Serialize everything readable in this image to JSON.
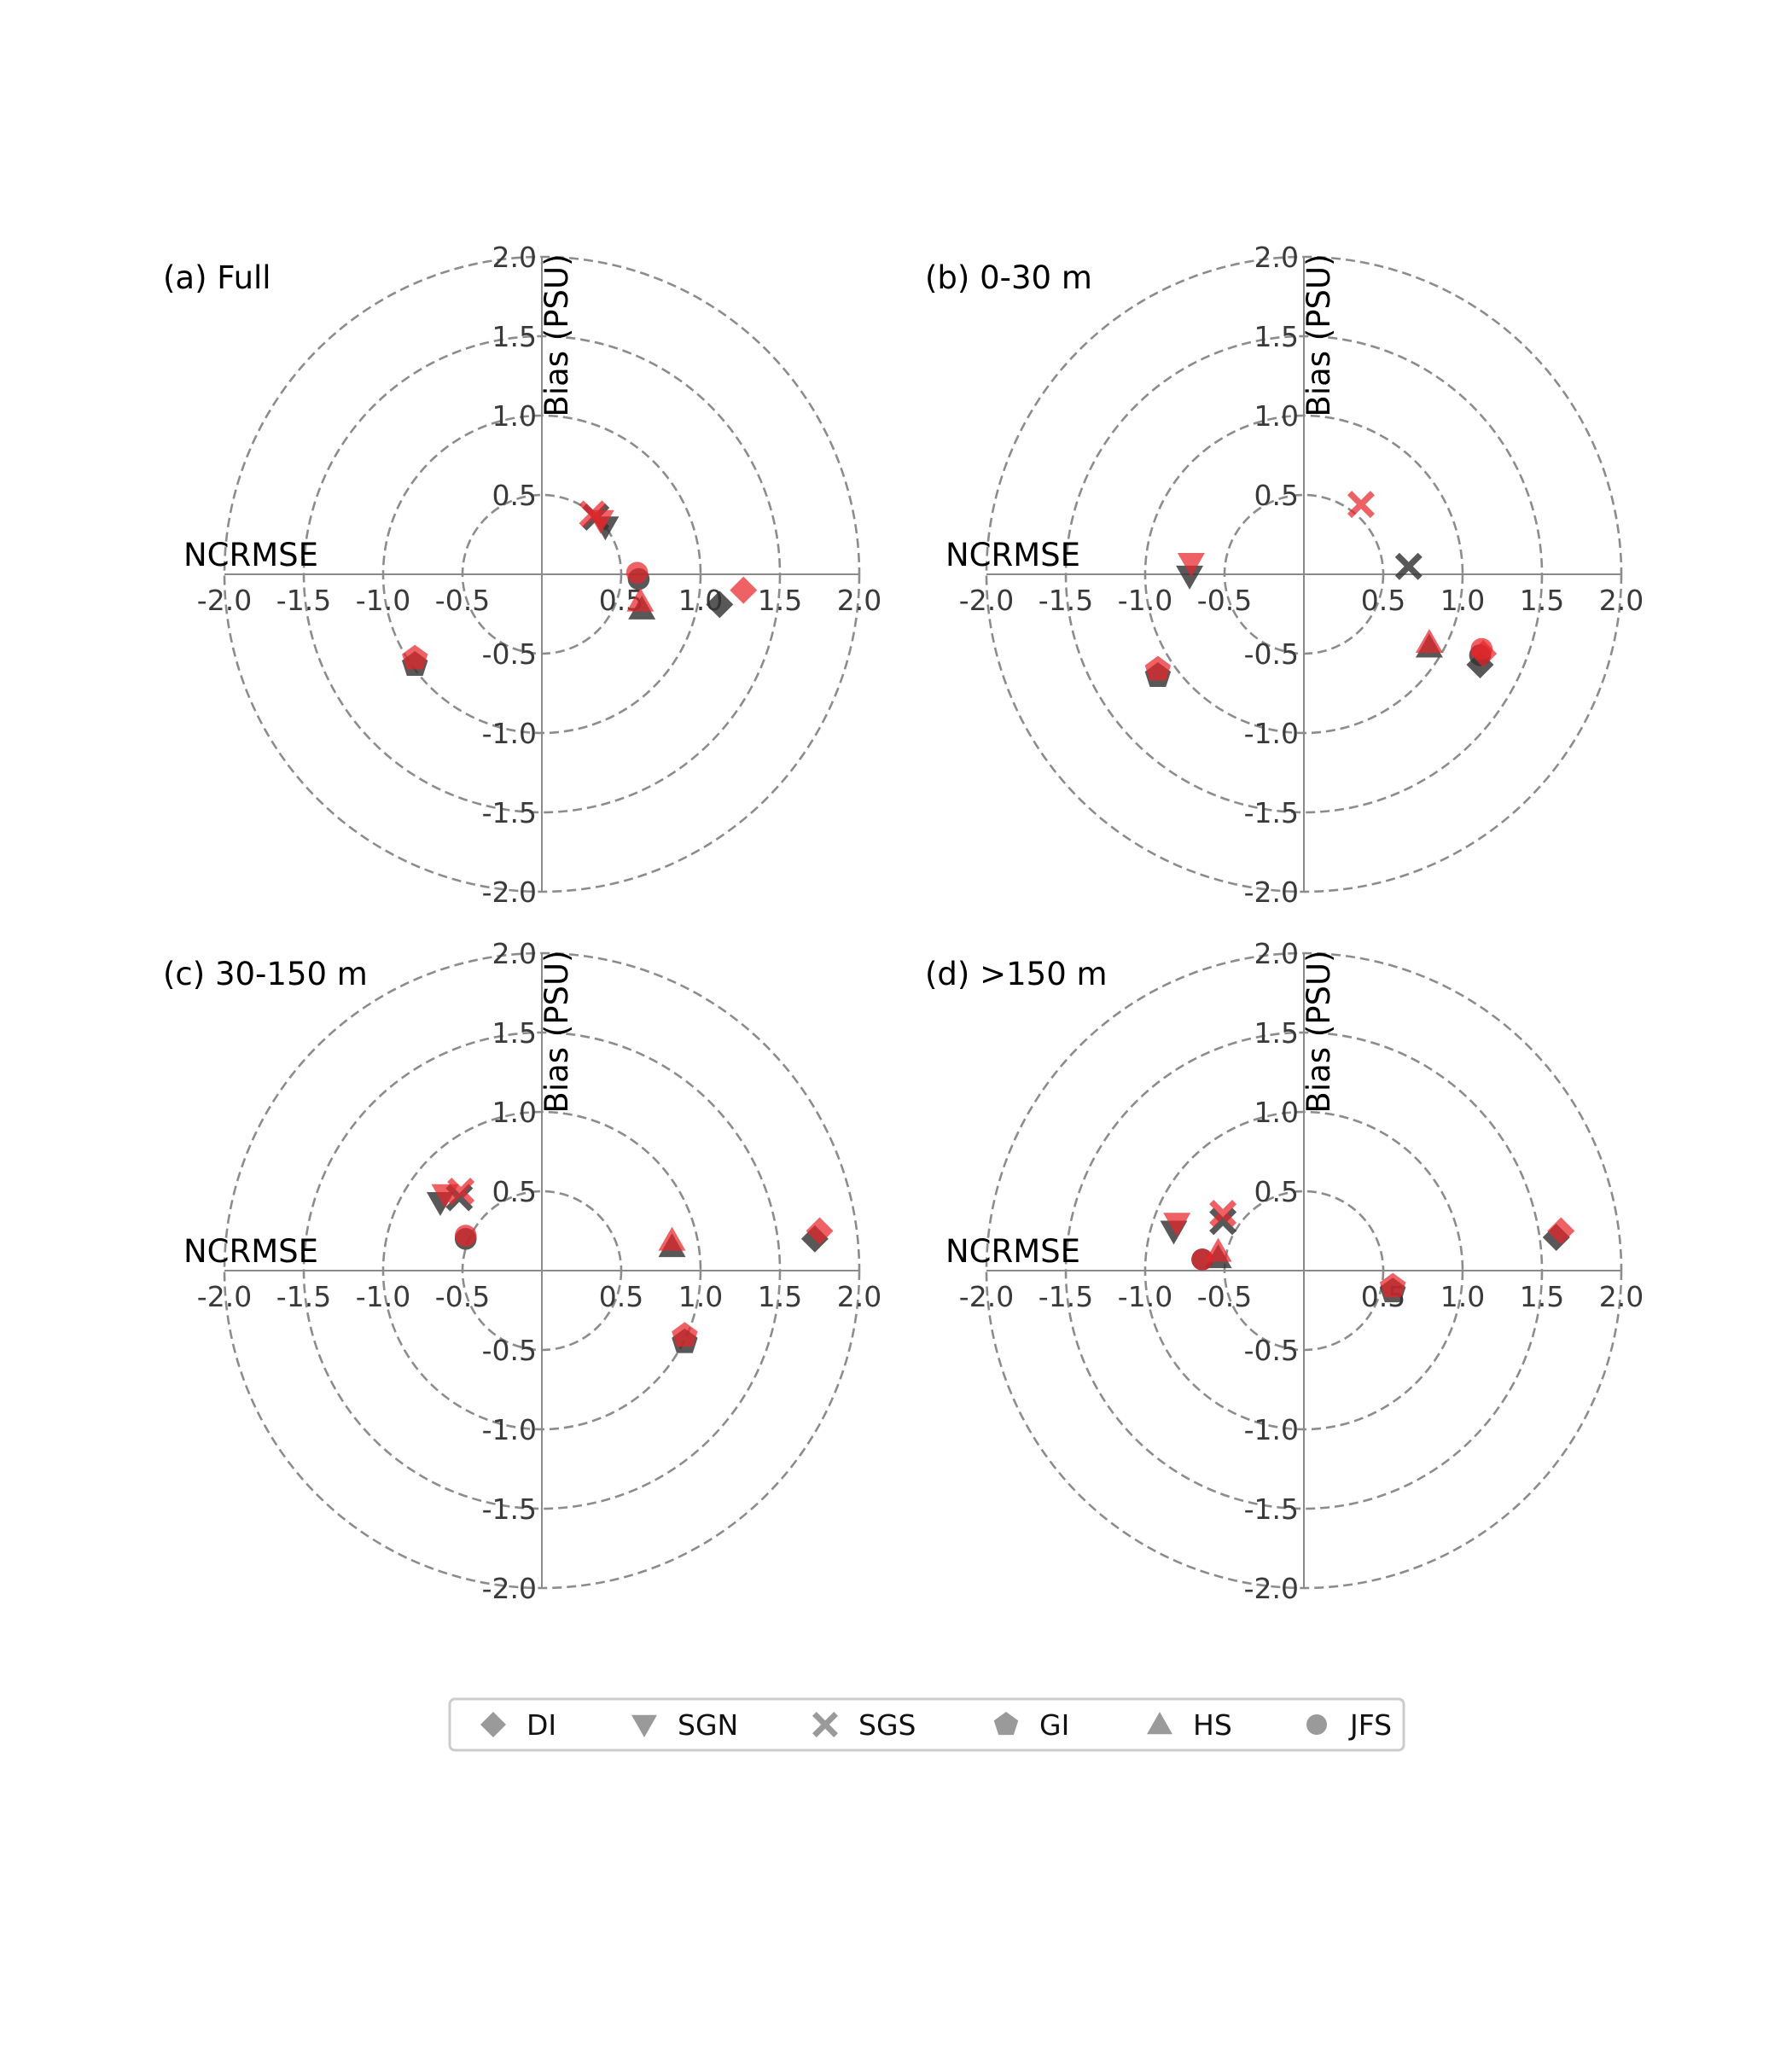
{
  "chart_data": {
    "type": "scatter",
    "description_none": "",
    "marker_colors": {
      "black": "#333333",
      "red": "#e8262b",
      "legend_gray": "#9a9a9a",
      "grid": "#8c8c8c"
    },
    "shared_legend": [
      {
        "name": "DI",
        "marker": "diamond"
      },
      {
        "name": "SGN",
        "marker": "triangle-down"
      },
      {
        "name": "SGS",
        "marker": "x"
      },
      {
        "name": "GI",
        "marker": "pentagon"
      },
      {
        "name": "HS",
        "marker": "triangle-up"
      },
      {
        "name": "JFS",
        "marker": "circle"
      }
    ],
    "legend_placement": "bottom-center",
    "panels": [
      {
        "title": "(a) Full",
        "xlabel": "NCRMSE",
        "ylabel": "Bias (PSU)",
        "xlim": [
          -2.0,
          2.0
        ],
        "ylim": [
          -2.0,
          2.0
        ],
        "xticks": [
          "-2.0",
          "-1.5",
          "-1.0",
          "-0.5",
          "0.5",
          "1.0",
          "1.5",
          "2.0"
        ],
        "yticks": [
          "2.0",
          "1.5",
          "1.0",
          "0.5",
          "-0.5",
          "-1.0",
          "-1.5",
          "-2.0"
        ],
        "rings": [
          0.5,
          1.0,
          1.5,
          2.0
        ],
        "grid": true,
        "points": [
          {
            "series": "DI",
            "group": "black",
            "x": 1.12,
            "y": -0.19
          },
          {
            "series": "DI",
            "group": "red",
            "x": 1.27,
            "y": -0.1
          },
          {
            "series": "SGN",
            "group": "black",
            "x": 0.4,
            "y": 0.3
          },
          {
            "series": "SGN",
            "group": "red",
            "x": 0.37,
            "y": 0.34
          },
          {
            "series": "SGS",
            "group": "black",
            "x": 0.34,
            "y": 0.36
          },
          {
            "series": "SGS",
            "group": "red",
            "x": 0.32,
            "y": 0.38
          },
          {
            "series": "GI",
            "group": "black",
            "x": -0.8,
            "y": -0.57
          },
          {
            "series": "GI",
            "group": "red",
            "x": -0.8,
            "y": -0.53
          },
          {
            "series": "HS",
            "group": "black",
            "x": 0.63,
            "y": -0.22
          },
          {
            "series": "HS",
            "group": "red",
            "x": 0.62,
            "y": -0.17
          },
          {
            "series": "JFS",
            "group": "black",
            "x": 0.61,
            "y": -0.03
          },
          {
            "series": "JFS",
            "group": "red",
            "x": 0.6,
            "y": 0.01
          }
        ]
      },
      {
        "title": "(b) 0-30 m",
        "xlabel": "NCRMSE",
        "ylabel": "Bias (PSU)",
        "xlim": [
          -2.0,
          2.0
        ],
        "ylim": [
          -2.0,
          2.0
        ],
        "xticks": [
          "-2.0",
          "-1.5",
          "-1.0",
          "-0.5",
          "0.5",
          "1.0",
          "1.5",
          "2.0"
        ],
        "yticks": [
          "2.0",
          "1.5",
          "1.0",
          "0.5",
          "-0.5",
          "-1.0",
          "-1.5",
          "-2.0"
        ],
        "rings": [
          0.5,
          1.0,
          1.5,
          2.0
        ],
        "grid": true,
        "points": [
          {
            "series": "DI",
            "group": "black",
            "x": 1.11,
            "y": -0.57
          },
          {
            "series": "DI",
            "group": "red",
            "x": 1.13,
            "y": -0.5
          },
          {
            "series": "SGN",
            "group": "black",
            "x": -0.72,
            "y": -0.01
          },
          {
            "series": "SGN",
            "group": "red",
            "x": -0.71,
            "y": 0.07
          },
          {
            "series": "SGS",
            "group": "black",
            "x": 0.66,
            "y": 0.05
          },
          {
            "series": "SGS",
            "group": "red",
            "x": 0.36,
            "y": 0.44
          },
          {
            "series": "GI",
            "group": "black",
            "x": -0.92,
            "y": -0.64
          },
          {
            "series": "GI",
            "group": "red",
            "x": -0.92,
            "y": -0.6
          },
          {
            "series": "HS",
            "group": "black",
            "x": 0.79,
            "y": -0.46
          },
          {
            "series": "HS",
            "group": "red",
            "x": 0.79,
            "y": -0.43
          },
          {
            "series": "JFS",
            "group": "black",
            "x": 1.11,
            "y": -0.51
          },
          {
            "series": "JFS",
            "group": "red",
            "x": 1.12,
            "y": -0.47
          }
        ]
      },
      {
        "title": "(c) 30-150 m",
        "xlabel": "NCRMSE",
        "ylabel": "Bias (PSU)",
        "xlim": [
          -2.0,
          2.0
        ],
        "ylim": [
          -2.0,
          2.0
        ],
        "xticks": [
          "-2.0",
          "-1.5",
          "-1.0",
          "-0.5",
          "0.5",
          "1.0",
          "1.5",
          "2.0"
        ],
        "yticks": [
          "2.0",
          "1.5",
          "1.0",
          "0.5",
          "-0.5",
          "-1.0",
          "-1.5",
          "-2.0"
        ],
        "rings": [
          0.5,
          1.0,
          1.5,
          2.0
        ],
        "grid": true,
        "points": [
          {
            "series": "DI",
            "group": "black",
            "x": 1.72,
            "y": 0.2
          },
          {
            "series": "DI",
            "group": "red",
            "x": 1.75,
            "y": 0.25
          },
          {
            "series": "SGN",
            "group": "black",
            "x": -0.64,
            "y": 0.43
          },
          {
            "series": "SGN",
            "group": "red",
            "x": -0.61,
            "y": 0.48
          },
          {
            "series": "SGS",
            "group": "black",
            "x": -0.52,
            "y": 0.46
          },
          {
            "series": "SGS",
            "group": "red",
            "x": -0.51,
            "y": 0.5
          },
          {
            "series": "GI",
            "group": "black",
            "x": 0.9,
            "y": -0.45
          },
          {
            "series": "GI",
            "group": "red",
            "x": 0.9,
            "y": -0.41
          },
          {
            "series": "HS",
            "group": "black",
            "x": 0.82,
            "y": 0.15
          },
          {
            "series": "HS",
            "group": "red",
            "x": 0.82,
            "y": 0.19
          },
          {
            "series": "JFS",
            "group": "black",
            "x": -0.48,
            "y": 0.2
          },
          {
            "series": "JFS",
            "group": "red",
            "x": -0.48,
            "y": 0.22
          }
        ]
      },
      {
        "title": "(d) >150 m",
        "xlabel": "NCRMSE",
        "ylabel": "Bias (PSU)",
        "xlim": [
          -2.0,
          2.0
        ],
        "ylim": [
          -2.0,
          2.0
        ],
        "xticks": [
          "-2.0",
          "-1.5",
          "-1.0",
          "-0.5",
          "0.5",
          "1.0",
          "1.5",
          "2.0"
        ],
        "yticks": [
          "2.0",
          "1.5",
          "1.0",
          "0.5",
          "-0.5",
          "-1.0",
          "-1.5",
          "-2.0"
        ],
        "rings": [
          0.5,
          1.0,
          1.5,
          2.0
        ],
        "grid": true,
        "points": [
          {
            "series": "DI",
            "group": "black",
            "x": 1.59,
            "y": 0.21
          },
          {
            "series": "DI",
            "group": "red",
            "x": 1.62,
            "y": 0.25
          },
          {
            "series": "SGN",
            "group": "black",
            "x": -0.82,
            "y": 0.25
          },
          {
            "series": "SGN",
            "group": "red",
            "x": -0.8,
            "y": 0.3
          },
          {
            "series": "SGS",
            "group": "black",
            "x": -0.51,
            "y": 0.31
          },
          {
            "series": "SGS",
            "group": "red",
            "x": -0.51,
            "y": 0.36
          },
          {
            "series": "GI",
            "group": "black",
            "x": 0.56,
            "y": -0.13
          },
          {
            "series": "GI",
            "group": "red",
            "x": 0.56,
            "y": -0.1
          },
          {
            "series": "HS",
            "group": "black",
            "x": -0.54,
            "y": 0.08
          },
          {
            "series": "HS",
            "group": "red",
            "x": -0.54,
            "y": 0.12
          },
          {
            "series": "JFS",
            "group": "black",
            "x": -0.64,
            "y": 0.07
          },
          {
            "series": "JFS",
            "group": "red",
            "x": -0.64,
            "y": 0.07
          }
        ]
      }
    ]
  }
}
